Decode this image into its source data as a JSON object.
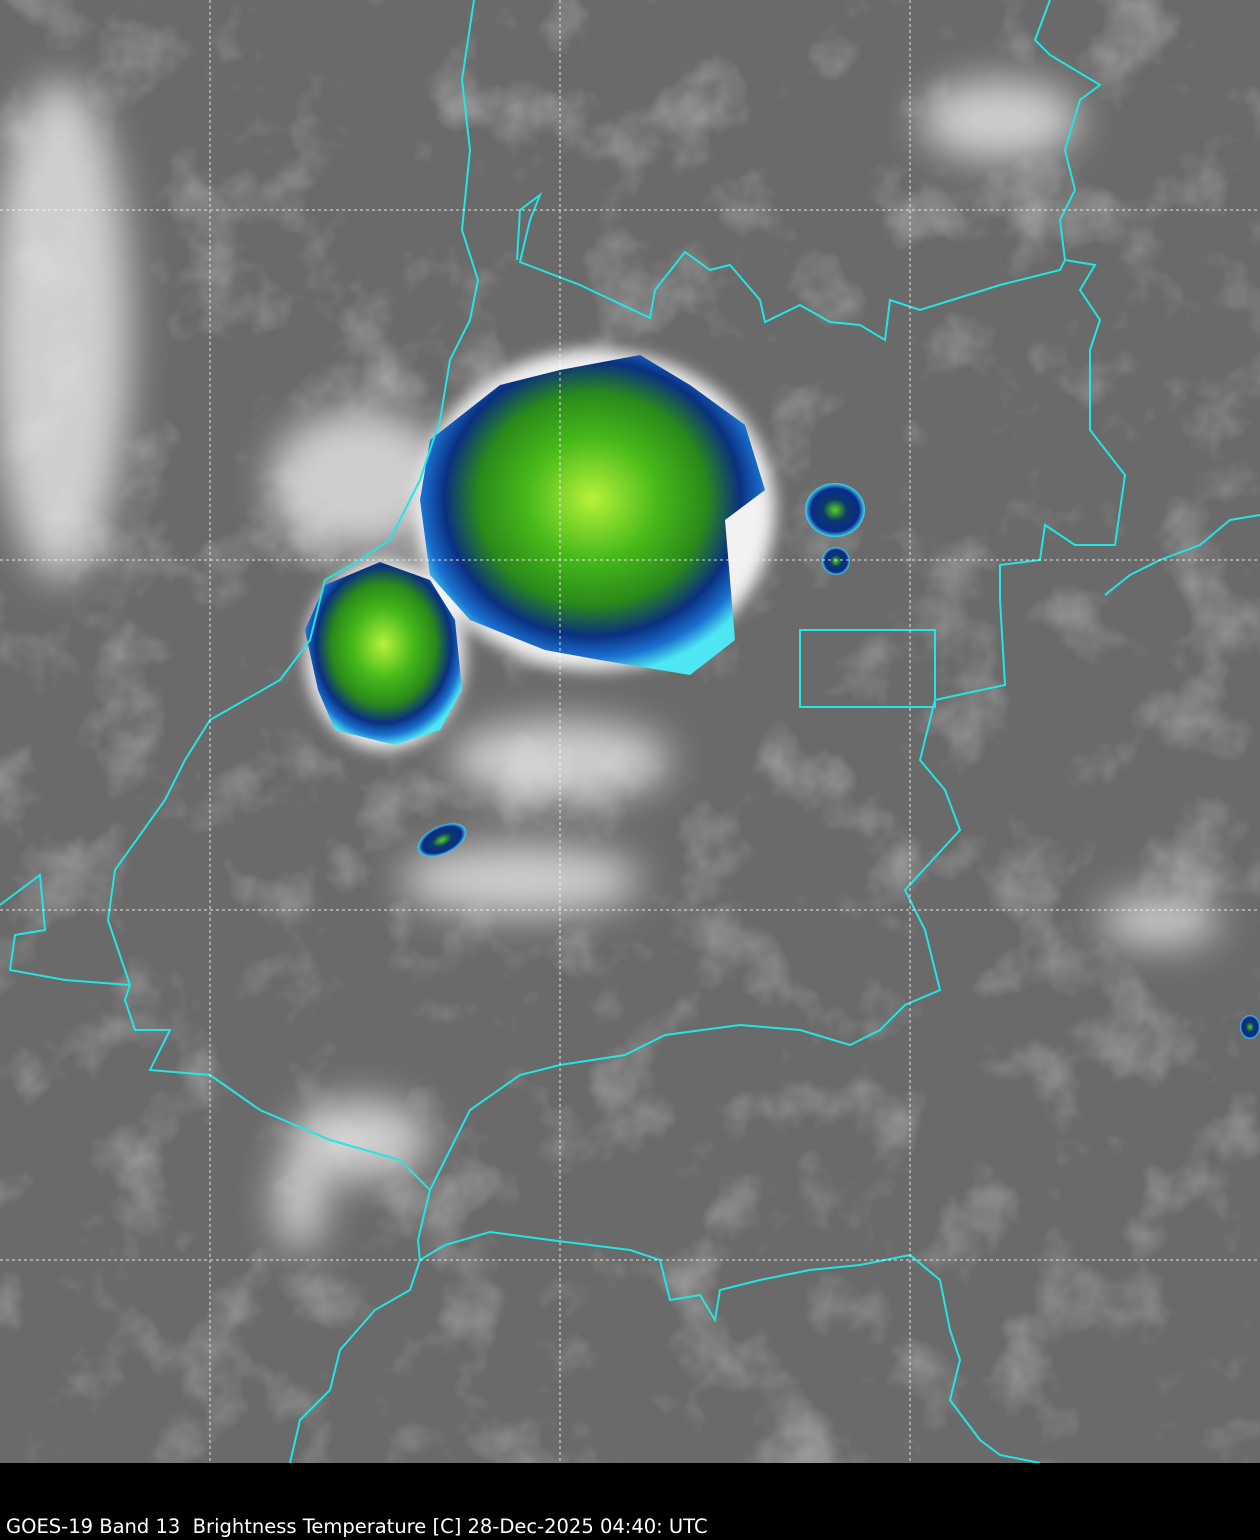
{
  "caption": "GOES-19 Band 13  Brightness Temperature [C] 28-Dec-2025 04:40: UTC",
  "colors": {
    "background_land": "#6b6b6b",
    "border_line": "#22e5e5",
    "gridline": "#ffffff",
    "cold_cloud_green": "#4fc21a",
    "cold_cloud_blue": "#0a2a8a",
    "cold_cloud_cyan": "#39e0f0"
  },
  "layers": [
    "infrared-grayscale",
    "country-borders",
    "lat-lon-grid"
  ]
}
